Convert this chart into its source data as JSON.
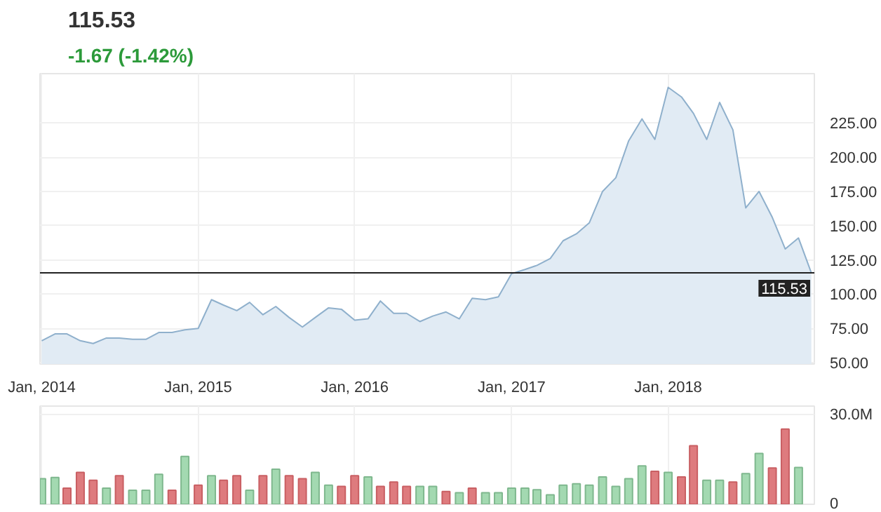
{
  "chart_data": [
    {
      "type": "area",
      "title": "115.53",
      "subtitle": "-1.67  (-1.42%)",
      "x": [
        "2014-01",
        "2014-02",
        "2014-03",
        "2014-04",
        "2014-05",
        "2014-06",
        "2014-07",
        "2014-08",
        "2014-09",
        "2014-10",
        "2014-11",
        "2014-12",
        "2015-01",
        "2015-02",
        "2015-03",
        "2015-04",
        "2015-05",
        "2015-06",
        "2015-07",
        "2015-08",
        "2015-09",
        "2015-10",
        "2015-11",
        "2015-12",
        "2016-01",
        "2016-02",
        "2016-03",
        "2016-04",
        "2016-05",
        "2016-06",
        "2016-07",
        "2016-08",
        "2016-09",
        "2016-10",
        "2016-11",
        "2016-12",
        "2017-01",
        "2017-02",
        "2017-03",
        "2017-04",
        "2017-05",
        "2017-06",
        "2017-07",
        "2017-08",
        "2017-09",
        "2017-10",
        "2017-11",
        "2017-12",
        "2018-01",
        "2018-02",
        "2018-03",
        "2018-04",
        "2018-05",
        "2018-06",
        "2018-07",
        "2018-08",
        "2018-09",
        "2018-10",
        "2018-11",
        "2018-12"
      ],
      "series": [
        {
          "color": "#8fb0cc",
          "values": [
            66,
            71,
            71,
            66,
            64,
            68,
            68,
            67,
            67,
            72,
            72,
            74,
            75,
            96,
            92,
            88,
            94,
            85,
            91,
            83,
            76,
            83,
            90,
            89,
            81,
            82,
            95,
            86,
            86,
            80,
            84,
            87,
            82,
            97,
            96,
            98,
            115,
            118,
            121,
            126,
            139,
            144,
            152,
            175,
            185,
            212,
            228,
            213,
            251,
            244,
            232,
            213,
            240,
            220,
            163,
            175,
            156,
            133,
            141,
            115.53
          ]
        }
      ],
      "xlim": [
        "2013-12-28",
        "2018-12-08"
      ],
      "ylim": [
        49,
        261
      ],
      "xticks": [
        {
          "value": "2014-01",
          "label": "Jan, 2014"
        },
        {
          "value": "2015-01",
          "label": "Jan, 2015"
        },
        {
          "value": "2016-01",
          "label": "Jan, 2016"
        },
        {
          "value": "2017-01",
          "label": "Jan, 2017"
        },
        {
          "value": "2018-01",
          "label": "Jan, 2018"
        }
      ],
      "yticks": [
        {
          "value": 50,
          "label": "50.00"
        },
        {
          "value": 75,
          "label": "75.00"
        },
        {
          "value": 100,
          "label": "100.00"
        },
        {
          "value": 125,
          "label": "125.00"
        },
        {
          "value": 150,
          "label": "150.00"
        },
        {
          "value": 175,
          "label": "175.00"
        },
        {
          "value": 200,
          "label": "200.00"
        },
        {
          "value": 225,
          "label": "225.00"
        }
      ],
      "ref_lines": [
        {
          "axis": "y",
          "value": 115.53,
          "label": "115.53",
          "color": "#222222"
        }
      ],
      "grid": true
    },
    {
      "type": "bar",
      "x": [
        "2014-01",
        "2014-02",
        "2014-03",
        "2014-04",
        "2014-05",
        "2014-06",
        "2014-07",
        "2014-08",
        "2014-09",
        "2014-10",
        "2014-11",
        "2014-12",
        "2015-01",
        "2015-02",
        "2015-03",
        "2015-04",
        "2015-05",
        "2015-06",
        "2015-07",
        "2015-08",
        "2015-09",
        "2015-10",
        "2015-11",
        "2015-12",
        "2016-01",
        "2016-02",
        "2016-03",
        "2016-04",
        "2016-05",
        "2016-06",
        "2016-07",
        "2016-08",
        "2016-09",
        "2016-10",
        "2016-11",
        "2016-12",
        "2017-01",
        "2017-02",
        "2017-03",
        "2017-04",
        "2017-05",
        "2017-06",
        "2017-07",
        "2017-08",
        "2017-09",
        "2017-10",
        "2017-11",
        "2017-12",
        "2018-01",
        "2018-02",
        "2018-03",
        "2018-04",
        "2018-05",
        "2018-06",
        "2018-07",
        "2018-08",
        "2018-09",
        "2018-10",
        "2018-11"
      ],
      "values": [
        8.6,
        9.0,
        5.4,
        10.7,
        8.1,
        5.4,
        9.6,
        4.7,
        4.7,
        10.1,
        4.7,
        16.1,
        6.4,
        9.6,
        8.1,
        9.6,
        4.7,
        9.6,
        11.8,
        9.6,
        8.6,
        10.7,
        6.4,
        6.0,
        9.6,
        9.2,
        6.0,
        7.5,
        6.0,
        6.0,
        6.0,
        4.3,
        3.9,
        5.4,
        3.9,
        3.9,
        5.4,
        5.4,
        4.9,
        3.2,
        6.4,
        6.9,
        6.4,
        9.2,
        6.0,
        8.6,
        12.9,
        11.1,
        10.7,
        9.2,
        19.7,
        8.1,
        8.1,
        7.5,
        10.3,
        17.1,
        12.2,
        25.3,
        12.4
      ],
      "colors": [
        "#a3d9b1",
        "#a3d9b1",
        "#de7b7e",
        "#de7b7e",
        "#de7b7e",
        "#a3d9b1",
        "#de7b7e",
        "#a3d9b1",
        "#a3d9b1",
        "#a3d9b1",
        "#de7b7e",
        "#a3d9b1",
        "#de7b7e",
        "#a3d9b1",
        "#de7b7e",
        "#de7b7e",
        "#a3d9b1",
        "#de7b7e",
        "#a3d9b1",
        "#de7b7e",
        "#de7b7e",
        "#a3d9b1",
        "#a3d9b1",
        "#de7b7e",
        "#de7b7e",
        "#a3d9b1",
        "#de7b7e",
        "#de7b7e",
        "#de7b7e",
        "#a3d9b1",
        "#a3d9b1",
        "#de7b7e",
        "#a3d9b1",
        "#de7b7e",
        "#a3d9b1",
        "#a3d9b1",
        "#a3d9b1",
        "#a3d9b1",
        "#a3d9b1",
        "#a3d9b1",
        "#a3d9b1",
        "#a3d9b1",
        "#a3d9b1",
        "#a3d9b1",
        "#a3d9b1",
        "#a3d9b1",
        "#a3d9b1",
        "#de7b7e",
        "#a3d9b1",
        "#de7b7e",
        "#de7b7e",
        "#a3d9b1",
        "#a3d9b1",
        "#de7b7e",
        "#a3d9b1",
        "#a3d9b1",
        "#de7b7e",
        "#de7b7e",
        "#a3d9b1"
      ],
      "xlim": [
        "2013-12-28",
        "2018-12-08"
      ],
      "ylim": [
        0,
        33
      ],
      "xticks": [
        {
          "value": "2014-01",
          "label": null
        },
        {
          "value": "2015-01",
          "label": null
        },
        {
          "value": "2016-01",
          "label": null
        },
        {
          "value": "2017-01",
          "label": null
        },
        {
          "value": "2018-01",
          "label": null
        }
      ],
      "yticks": [
        {
          "value": 0,
          "label": "0"
        },
        {
          "value": 30,
          "label": "30.0M"
        }
      ],
      "tick_labels": "y",
      "grid": true
    }
  ]
}
